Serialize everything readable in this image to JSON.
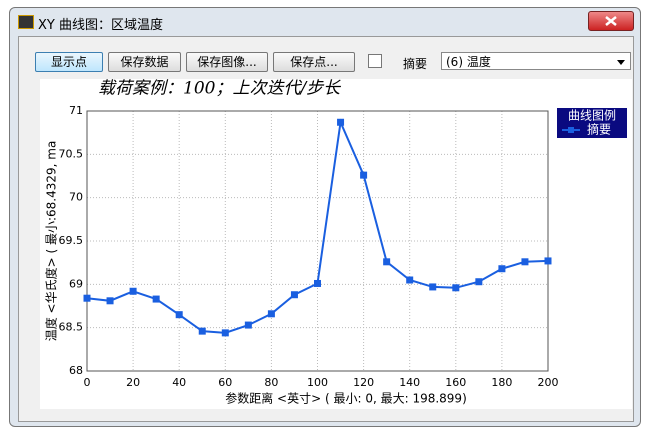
{
  "window": {
    "title": "XY 曲线图：区域温度"
  },
  "toolbar": {
    "buttons": [
      "显示点",
      "保存数据",
      "保存图像...",
      "保存点..."
    ],
    "dropdown_label": "摘要",
    "dropdown_value": "(6) 温度"
  },
  "chart_data": {
    "type": "line",
    "title": "载荷案例：100；上次迭代/步长",
    "x_label": "参数距离 <英寸> ( 最小: 0,  最大: 198.899)",
    "y_label": "温度 <华氏度> ( 最小:68.4329, ma",
    "x": [
      0,
      10,
      20,
      30,
      40,
      50,
      60,
      70,
      80,
      90,
      100,
      110,
      120,
      130,
      140,
      150,
      160,
      170,
      180,
      190,
      200
    ],
    "series": [
      {
        "name": "摘要",
        "color": "#1a5fe0",
        "values": [
          68.84,
          68.81,
          68.92,
          68.83,
          68.65,
          68.46,
          68.44,
          68.53,
          68.66,
          68.88,
          69.01,
          70.87,
          70.26,
          69.26,
          69.05,
          68.97,
          68.96,
          69.03,
          69.18,
          69.26,
          69.27
        ]
      }
    ],
    "xlim": [
      0,
      200
    ],
    "ylim": [
      68,
      71
    ],
    "xticks": [
      0,
      20,
      40,
      60,
      80,
      100,
      120,
      140,
      160,
      180,
      200
    ],
    "yticks": [
      68,
      68.5,
      69,
      69.5,
      70,
      70.5,
      71
    ],
    "grid": true,
    "legend_title": "曲线图例",
    "legend": "right"
  }
}
